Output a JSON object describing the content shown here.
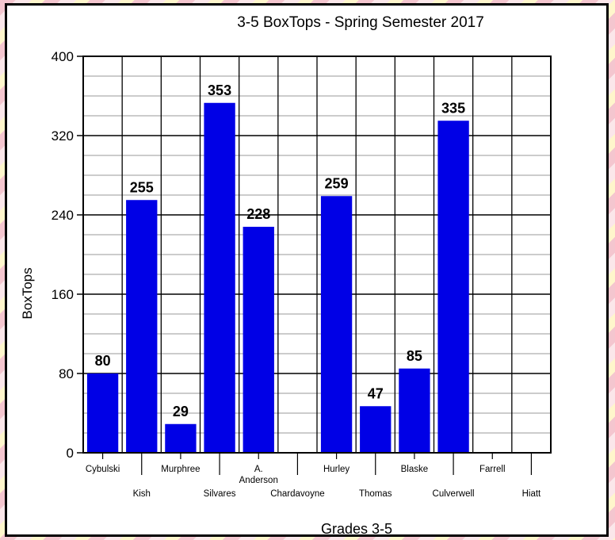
{
  "chart_data": {
    "type": "bar",
    "title": "3-5 BoxTops - Spring Semester 2017",
    "xlabel": "Grades 3-5",
    "ylabel": "BoxTops",
    "ylim": [
      0,
      400
    ],
    "yticks": [
      0,
      80,
      160,
      240,
      320,
      400
    ],
    "grid": true,
    "categories": [
      "Cybulski",
      "Kish",
      "Murphree",
      "Silvares",
      "A. Anderson",
      "Chardavoyne",
      "Hurley",
      "Thomas",
      "Blaske",
      "Culverwell",
      "Farrell",
      "Hiatt"
    ],
    "values": [
      80,
      255,
      29,
      353,
      228,
      0,
      259,
      47,
      85,
      335,
      0,
      0
    ],
    "data_labels": [
      "80",
      "255",
      "29",
      "353",
      "228",
      "",
      "259",
      "47",
      "85",
      "335",
      "",
      ""
    ],
    "bar_color": "#0000e6"
  }
}
